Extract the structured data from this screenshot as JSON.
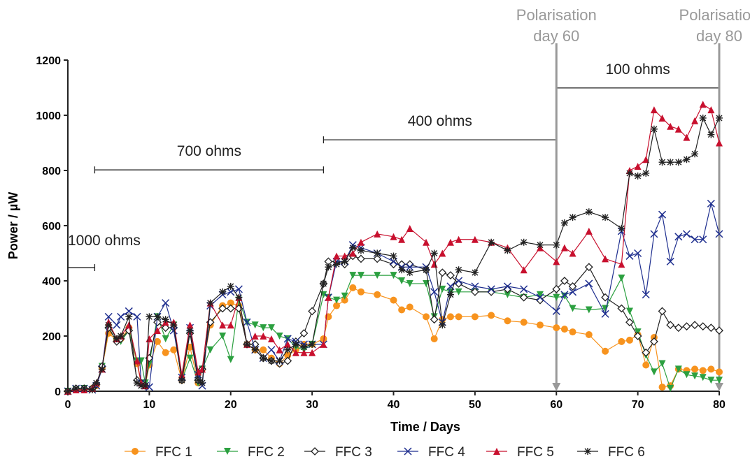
{
  "chart_data": {
    "type": "line",
    "xlabel": "Time / Days",
    "ylabel": "Power / µW",
    "xlim": [
      0,
      80
    ],
    "ylim": [
      0,
      1200
    ],
    "xticks": [
      0,
      10,
      20,
      30,
      40,
      50,
      60,
      70,
      80
    ],
    "yticks": [
      0,
      200,
      400,
      600,
      800,
      1000,
      1200
    ],
    "legend": "bottom",
    "x": [
      0,
      1,
      2,
      3,
      3.5,
      4.2,
      5,
      6,
      6.5,
      7.5,
      8.5,
      9,
      9.5,
      10,
      11,
      12,
      13,
      14,
      15,
      16,
      16.5,
      17.5,
      19,
      20,
      21,
      22,
      23,
      24,
      25,
      26,
      27,
      28,
      29,
      30,
      31.4,
      32,
      33,
      34,
      35,
      36,
      38,
      40,
      41,
      42,
      44,
      45,
      46,
      47,
      48,
      50,
      52,
      54,
      56,
      58,
      60,
      61,
      62,
      64,
      66,
      68,
      69,
      70,
      71,
      72,
      73,
      74,
      75,
      76,
      77,
      78,
      79,
      80
    ],
    "series": [
      {
        "name": "FFC 1",
        "color": "#f7931e",
        "marker": "circle",
        "values": [
          0,
          5,
          5,
          10,
          20,
          85,
          210,
          185,
          190,
          230,
          100,
          30,
          20,
          95,
          180,
          140,
          150,
          40,
          160,
          30,
          80,
          240,
          310,
          320,
          310,
          170,
          150,
          150,
          120,
          100,
          130,
          150,
          170,
          170,
          190,
          270,
          310,
          330,
          375,
          360,
          350,
          330,
          295,
          305,
          270,
          190,
          260,
          270,
          270,
          270,
          275,
          255,
          250,
          240,
          230,
          225,
          215,
          205,
          145,
          180,
          185,
          205,
          95,
          195,
          15,
          20,
          80,
          75,
          80,
          75,
          80,
          70
        ]
      },
      {
        "name": "FFC 2",
        "color": "#2ca040",
        "marker": "tri-down",
        "values": [
          0,
          5,
          10,
          5,
          20,
          90,
          230,
          180,
          180,
          220,
          110,
          110,
          30,
          100,
          270,
          190,
          240,
          40,
          120,
          30,
          80,
          150,
          200,
          115,
          330,
          250,
          240,
          230,
          230,
          200,
          190,
          160,
          150,
          170,
          350,
          340,
          330,
          345,
          420,
          420,
          420,
          420,
          400,
          390,
          390,
          270,
          370,
          360,
          360,
          360,
          360,
          350,
          340,
          350,
          340,
          345,
          300,
          295,
          300,
          410,
          290,
          215,
          130,
          70,
          100,
          10,
          80,
          60,
          55,
          50,
          40,
          40
        ]
      },
      {
        "name": "FFC 3",
        "color": "#222222",
        "marker": "diamond",
        "values": [
          0,
          10,
          10,
          10,
          25,
          90,
          230,
          180,
          190,
          220,
          40,
          30,
          20,
          120,
          250,
          230,
          230,
          40,
          210,
          40,
          80,
          250,
          300,
          300,
          300,
          170,
          170,
          120,
          110,
          100,
          110,
          180,
          210,
          290,
          390,
          470,
          470,
          460,
          490,
          480,
          480,
          460,
          460,
          460,
          440,
          260,
          430,
          420,
          390,
          360,
          360,
          370,
          340,
          330,
          370,
          400,
          380,
          450,
          340,
          300,
          250,
          200,
          140,
          180,
          290,
          240,
          230,
          235,
          240,
          235,
          230,
          220
        ]
      },
      {
        "name": "FFC 4",
        "color": "#1f2f8f",
        "marker": "cross",
        "values": [
          0,
          10,
          10,
          5,
          20,
          80,
          270,
          240,
          270,
          290,
          270,
          30,
          20,
          15,
          270,
          320,
          220,
          50,
          230,
          60,
          20,
          310,
          350,
          360,
          370,
          250,
          150,
          120,
          150,
          110,
          190,
          180,
          170,
          170,
          170,
          340,
          470,
          470,
          530,
          520,
          500,
          470,
          450,
          450,
          450,
          360,
          250,
          380,
          400,
          380,
          370,
          380,
          370,
          340,
          290,
          350,
          360,
          390,
          280,
          580,
          490,
          500,
          350,
          570,
          640,
          470,
          560,
          570,
          550,
          550,
          680,
          570
        ]
      },
      {
        "name": "FFC 5",
        "color": "#c8102e",
        "marker": "tri-up",
        "values": [
          0,
          5,
          5,
          10,
          30,
          80,
          250,
          190,
          200,
          240,
          110,
          30,
          20,
          190,
          220,
          250,
          250,
          60,
          240,
          70,
          80,
          320,
          240,
          240,
          340,
          170,
          200,
          200,
          190,
          150,
          170,
          140,
          140,
          140,
          170,
          340,
          490,
          490,
          500,
          540,
          570,
          560,
          550,
          590,
          540,
          460,
          500,
          540,
          550,
          550,
          540,
          520,
          440,
          520,
          470,
          520,
          500,
          580,
          480,
          460,
          800,
          815,
          840,
          1020,
          990,
          960,
          950,
          920,
          980,
          1040,
          1020,
          900
        ]
      },
      {
        "name": "FFC 6",
        "color": "#222222",
        "marker": "star",
        "values": [
          0,
          10,
          10,
          5,
          30,
          80,
          240,
          190,
          200,
          270,
          30,
          20,
          20,
          270,
          270,
          260,
          240,
          40,
          220,
          40,
          30,
          320,
          360,
          380,
          340,
          170,
          150,
          120,
          110,
          110,
          150,
          170,
          160,
          170,
          390,
          450,
          460,
          470,
          520,
          510,
          500,
          490,
          440,
          430,
          440,
          500,
          240,
          350,
          440,
          430,
          540,
          510,
          540,
          530,
          530,
          610,
          630,
          650,
          630,
          590,
          790,
          780,
          790,
          950,
          830,
          830,
          830,
          840,
          860,
          990,
          930,
          990
        ]
      }
    ],
    "annotations": [
      {
        "text": "1000 ohms",
        "x_range": [
          0,
          3.3
        ],
        "y": 448
      },
      {
        "text": "700 ohms",
        "x_range": [
          3.3,
          31.4
        ],
        "y": 802
      },
      {
        "text": "400 ohms",
        "x_range": [
          31.4,
          60
        ],
        "y": 911
      },
      {
        "text": "100 ohms",
        "x_range": [
          60,
          80
        ],
        "y": 1099
      }
    ],
    "events": [
      {
        "x": 60,
        "lines": [
          "Polarisation",
          "day 60"
        ]
      },
      {
        "x": 80,
        "lines": [
          "Polarisation",
          "day 80"
        ]
      }
    ]
  }
}
